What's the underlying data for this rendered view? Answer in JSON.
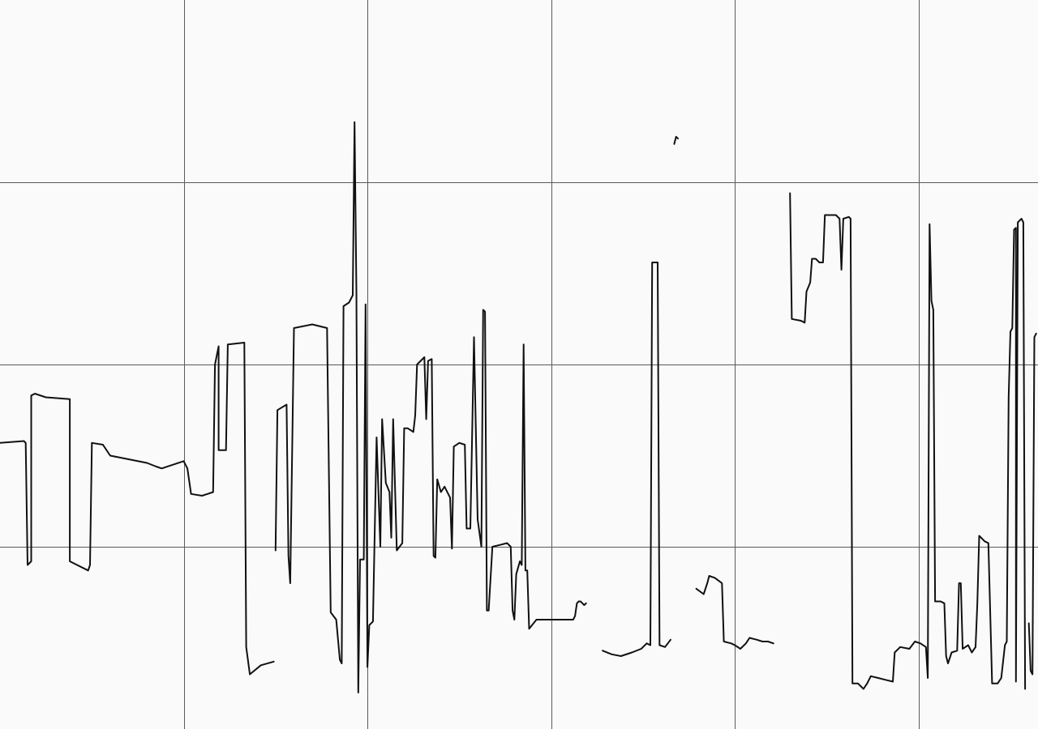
{
  "chart_data": {
    "type": "line",
    "title": "",
    "xlabel": "",
    "ylabel": "",
    "grid": true,
    "legend": "none",
    "xlim": [
      0,
      5.65
    ],
    "ylim": [
      0,
      4
    ],
    "x_grid_values": [
      1,
      2,
      3,
      4,
      5
    ],
    "y_grid_values": [
      1,
      2,
      3
    ],
    "colors": {
      "background": "#fafafa",
      "grid": "#5a5a5a",
      "line": "#111111"
    },
    "series": [
      {
        "segments": [
          [
            [
              0.0,
              1.57
            ],
            [
              0.13,
              1.58
            ],
            [
              0.14,
              1.57
            ],
            [
              0.15,
              0.9
            ],
            [
              0.17,
              0.92
            ],
            [
              0.17,
              1.83
            ],
            [
              0.19,
              1.84
            ],
            [
              0.25,
              1.82
            ],
            [
              0.38,
              1.81
            ],
            [
              0.38,
              0.92
            ],
            [
              0.48,
              0.87
            ],
            [
              0.49,
              0.9
            ],
            [
              0.5,
              1.57
            ],
            [
              0.56,
              1.56
            ],
            [
              0.6,
              1.5
            ],
            [
              0.7,
              1.48
            ],
            [
              0.8,
              1.46
            ],
            [
              0.85,
              1.44
            ],
            [
              0.88,
              1.43
            ],
            [
              1.0,
              1.47
            ],
            [
              1.02,
              1.43
            ],
            [
              1.04,
              1.29
            ],
            [
              1.1,
              1.28
            ],
            [
              1.16,
              1.3
            ],
            [
              1.17,
              2.0
            ],
            [
              1.19,
              2.1
            ],
            [
              1.19,
              1.53
            ],
            [
              1.23,
              1.53
            ],
            [
              1.24,
              2.11
            ],
            [
              1.33,
              2.12
            ],
            [
              1.34,
              0.45
            ],
            [
              1.36,
              0.3
            ],
            [
              1.42,
              0.35
            ],
            [
              1.49,
              0.37
            ]
          ],
          [
            [
              1.5,
              0.98
            ],
            [
              1.51,
              1.75
            ],
            [
              1.56,
              1.78
            ],
            [
              1.57,
              0.95
            ],
            [
              1.58,
              0.8
            ],
            [
              1.6,
              2.2
            ],
            [
              1.7,
              2.22
            ],
            [
              1.78,
              2.2
            ],
            [
              1.8,
              0.64
            ],
            [
              1.83,
              0.6
            ],
            [
              1.85,
              0.38
            ],
            [
              1.86,
              0.36
            ],
            [
              1.87,
              2.32
            ],
            [
              1.9,
              2.34
            ],
            [
              1.92,
              2.38
            ],
            [
              1.93,
              3.33
            ],
            [
              1.94,
              2.4
            ],
            [
              1.95,
              0.2
            ],
            [
              1.96,
              0.93
            ],
            [
              1.98,
              0.93
            ],
            [
              1.99,
              2.33
            ],
            [
              2.0,
              0.34
            ],
            [
              2.01,
              0.57
            ],
            [
              2.03,
              0.59
            ],
            [
              2.05,
              1.6
            ],
            [
              2.07,
              1.0
            ],
            [
              2.08,
              1.7
            ],
            [
              2.1,
              1.35
            ],
            [
              2.12,
              1.3
            ],
            [
              2.13,
              1.05
            ],
            [
              2.14,
              1.7
            ],
            [
              2.16,
              0.98
            ],
            [
              2.19,
              1.02
            ],
            [
              2.2,
              1.65
            ],
            [
              2.22,
              1.65
            ],
            [
              2.25,
              1.63
            ],
            [
              2.26,
              1.72
            ],
            [
              2.27,
              2.0
            ],
            [
              2.29,
              2.02
            ],
            [
              2.31,
              2.04
            ],
            [
              2.32,
              1.7
            ],
            [
              2.33,
              2.02
            ],
            [
              2.35,
              2.03
            ],
            [
              2.36,
              0.95
            ],
            [
              2.37,
              0.94
            ],
            [
              2.38,
              1.37
            ],
            [
              2.4,
              1.3
            ],
            [
              2.42,
              1.33
            ],
            [
              2.45,
              1.27
            ],
            [
              2.46,
              0.99
            ],
            [
              2.47,
              1.55
            ],
            [
              2.5,
              1.57
            ],
            [
              2.53,
              1.56
            ],
            [
              2.54,
              1.1
            ],
            [
              2.56,
              1.1
            ],
            [
              2.58,
              2.15
            ],
            [
              2.6,
              1.15
            ],
            [
              2.62,
              1.0
            ],
            [
              2.63,
              2.3
            ],
            [
              2.64,
              2.29
            ],
            [
              2.65,
              0.65
            ],
            [
              2.66,
              0.65
            ],
            [
              2.68,
              1.0
            ],
            [
              2.72,
              1.01
            ],
            [
              2.76,
              1.02
            ],
            [
              2.78,
              1.0
            ],
            [
              2.79,
              0.65
            ],
            [
              2.8,
              0.6
            ],
            [
              2.81,
              0.85
            ],
            [
              2.83,
              0.92
            ],
            [
              2.84,
              0.9
            ],
            [
              2.85,
              2.11
            ],
            [
              2.86,
              0.87
            ],
            [
              2.87,
              0.87
            ],
            [
              2.88,
              0.55
            ],
            [
              2.92,
              0.6
            ],
            [
              2.95,
              0.6
            ],
            [
              3.0,
              0.6
            ],
            [
              3.05,
              0.6
            ],
            [
              3.1,
              0.6
            ],
            [
              3.12,
              0.6
            ],
            [
              3.13,
              0.62
            ],
            [
              3.14,
              0.69
            ],
            [
              3.15,
              0.7
            ],
            [
              3.16,
              0.7
            ],
            [
              3.17,
              0.69
            ],
            [
              3.18,
              0.68
            ],
            [
              3.19,
              0.69
            ]
          ],
          [
            [
              3.28,
              0.43
            ],
            [
              3.33,
              0.41
            ],
            [
              3.38,
              0.4
            ],
            [
              3.44,
              0.42
            ],
            [
              3.49,
              0.44
            ],
            [
              3.52,
              0.47
            ],
            [
              3.54,
              0.46
            ],
            [
              3.55,
              2.56
            ],
            [
              3.58,
              2.56
            ],
            [
              3.59,
              0.46
            ],
            [
              3.62,
              0.45
            ],
            [
              3.65,
              0.49
            ]
          ],
          [
            [
              3.67,
              3.21
            ],
            [
              3.68,
              3.25
            ],
            [
              3.69,
              3.24
            ]
          ],
          [
            [
              3.79,
              0.77
            ],
            [
              3.83,
              0.74
            ],
            [
              3.85,
              0.8
            ],
            [
              3.86,
              0.84
            ],
            [
              3.89,
              0.83
            ],
            [
              3.93,
              0.8
            ],
            [
              3.94,
              0.48
            ],
            [
              3.98,
              0.47
            ],
            [
              4.0,
              0.46
            ],
            [
              4.03,
              0.44
            ],
            [
              4.06,
              0.47
            ],
            [
              4.08,
              0.5
            ],
            [
              4.12,
              0.49
            ],
            [
              4.15,
              0.48
            ],
            [
              4.18,
              0.48
            ],
            [
              4.21,
              0.47
            ]
          ],
          [
            [
              4.3,
              2.94
            ],
            [
              4.31,
              2.25
            ],
            [
              4.36,
              2.24
            ],
            [
              4.38,
              2.23
            ],
            [
              4.39,
              2.4
            ],
            [
              4.41,
              2.45
            ],
            [
              4.42,
              2.58
            ],
            [
              4.44,
              2.58
            ],
            [
              4.46,
              2.56
            ],
            [
              4.48,
              2.56
            ],
            [
              4.49,
              2.82
            ],
            [
              4.55,
              2.82
            ],
            [
              4.57,
              2.8
            ],
            [
              4.58,
              2.52
            ],
            [
              4.59,
              2.8
            ],
            [
              4.62,
              2.81
            ],
            [
              4.63,
              2.8
            ],
            [
              4.64,
              0.25
            ],
            [
              4.67,
              0.25
            ],
            [
              4.7,
              0.22
            ],
            [
              4.72,
              0.25
            ],
            [
              4.74,
              0.29
            ],
            [
              4.78,
              0.28
            ],
            [
              4.82,
              0.27
            ],
            [
              4.86,
              0.26
            ],
            [
              4.87,
              0.42
            ],
            [
              4.9,
              0.45
            ],
            [
              4.95,
              0.44
            ],
            [
              4.98,
              0.48
            ],
            [
              5.01,
              0.47
            ],
            [
              5.04,
              0.45
            ],
            [
              5.05,
              0.28
            ],
            [
              5.06,
              2.77
            ],
            [
              5.07,
              2.35
            ],
            [
              5.08,
              2.3
            ],
            [
              5.09,
              0.7
            ],
            [
              5.12,
              0.7
            ],
            [
              5.14,
              0.69
            ],
            [
              5.15,
              0.4
            ],
            [
              5.16,
              0.36
            ],
            [
              5.18,
              0.42
            ],
            [
              5.21,
              0.43
            ],
            [
              5.22,
              0.8
            ],
            [
              5.23,
              0.8
            ],
            [
              5.24,
              0.44
            ],
            [
              5.27,
              0.46
            ],
            [
              5.29,
              0.42
            ],
            [
              5.31,
              0.45
            ],
            [
              5.32,
              0.69
            ],
            [
              5.33,
              1.06
            ],
            [
              5.36,
              1.03
            ],
            [
              5.38,
              1.02
            ],
            [
              5.4,
              0.25
            ],
            [
              5.43,
              0.25
            ],
            [
              5.45,
              0.28
            ],
            [
              5.47,
              0.46
            ],
            [
              5.48,
              0.48
            ],
            [
              5.49,
              1.82
            ],
            [
              5.5,
              2.18
            ],
            [
              5.51,
              2.2
            ],
            [
              5.52,
              2.74
            ],
            [
              5.53,
              2.75
            ],
            [
              5.53,
              0.26
            ],
            [
              5.54,
              2.78
            ],
            [
              5.55,
              2.79
            ],
            [
              5.56,
              2.8
            ],
            [
              5.57,
              2.78
            ],
            [
              5.58,
              0.22
            ]
          ],
          [
            [
              5.6,
              0.58
            ],
            [
              5.61,
              0.32
            ],
            [
              5.62,
              0.3
            ],
            [
              5.63,
              2.15
            ],
            [
              5.64,
              2.17
            ]
          ]
        ]
      }
    ]
  }
}
